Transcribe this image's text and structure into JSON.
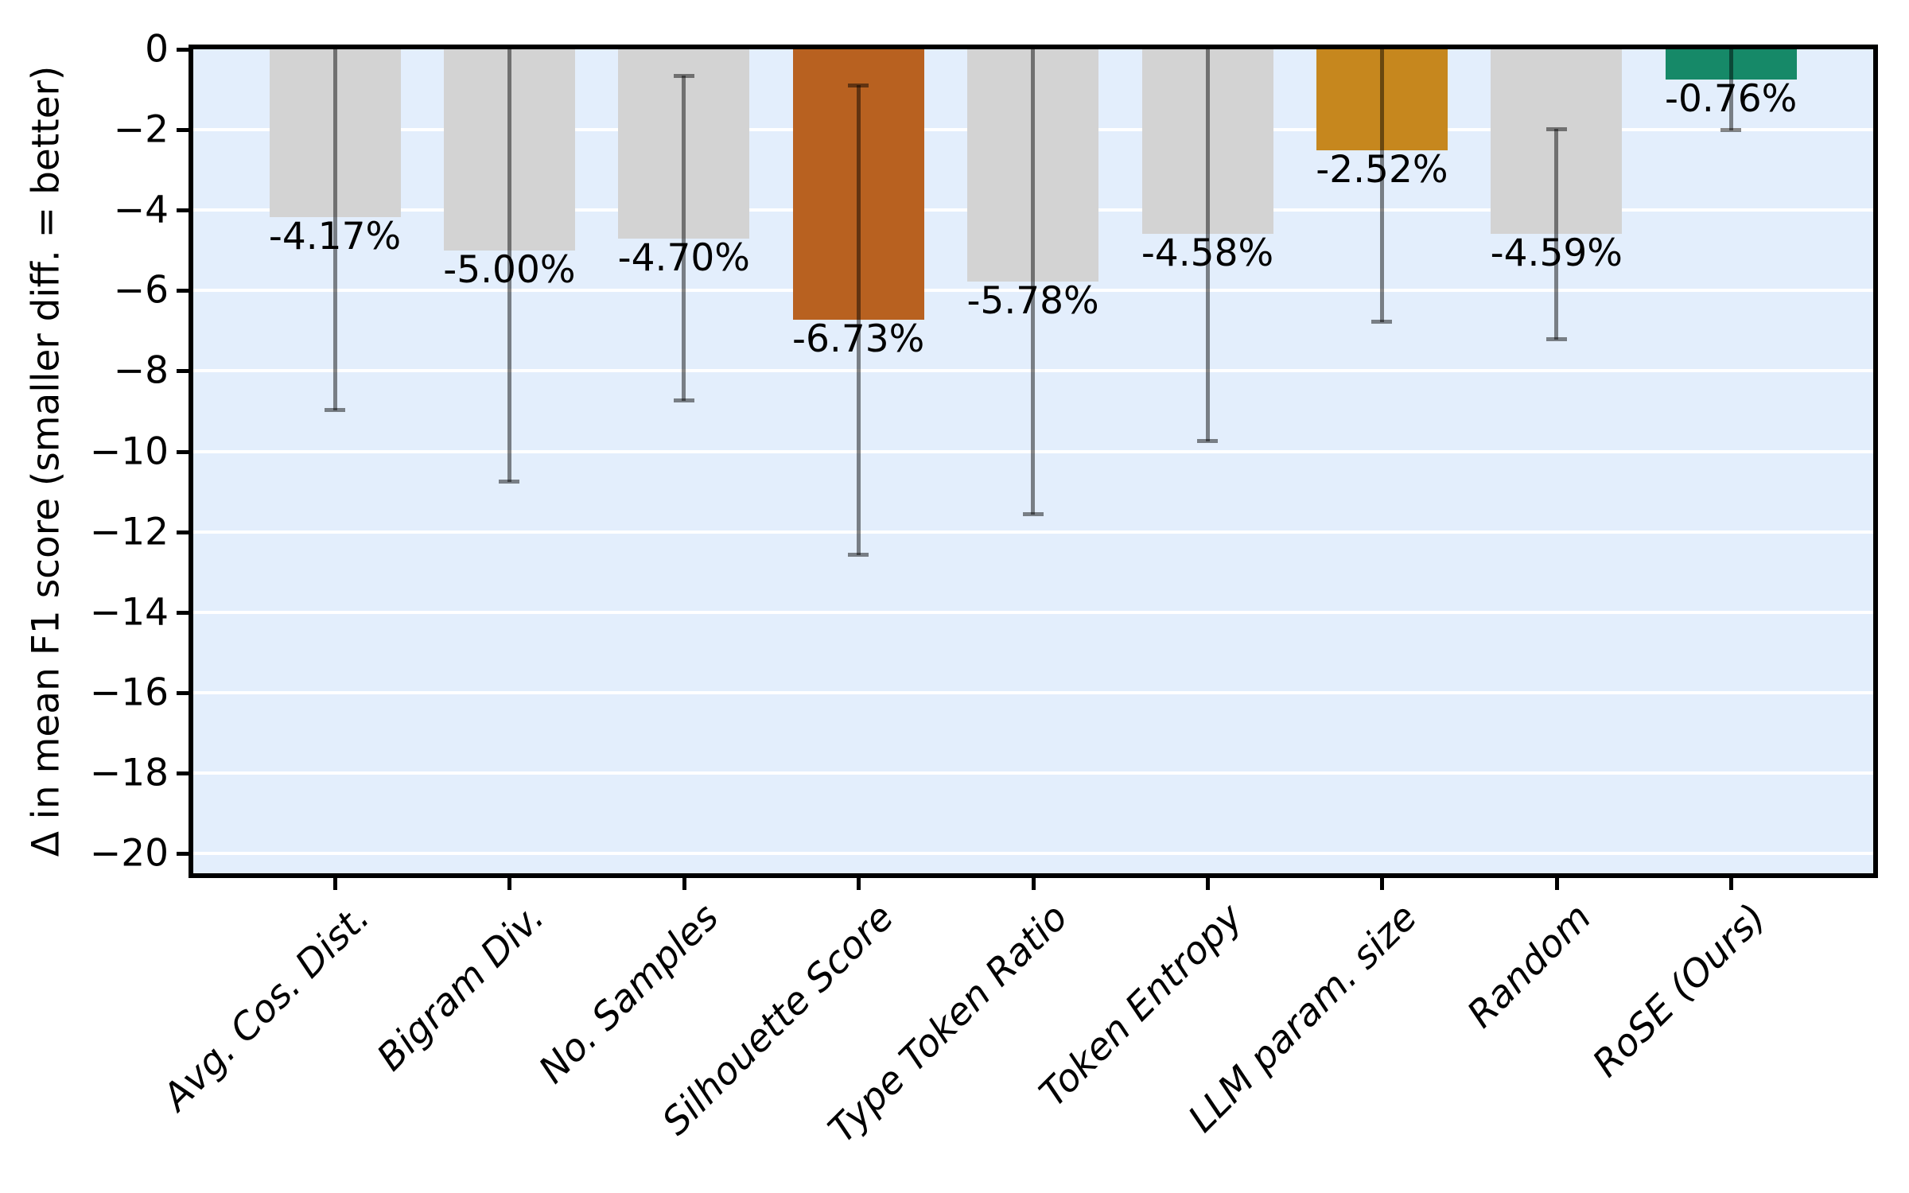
{
  "figure": {
    "kind": "matplotlib-style bar chart"
  },
  "colors": {
    "plot_background": "#e3eefc",
    "gridline": "#ffffff",
    "spine": "#000000",
    "error_bar": "rgba(0,0,0,0.47)",
    "bar_gray": "#d3d3d3",
    "bar_orange": "#b86120",
    "bar_gold": "#c6871e",
    "bar_green": "#168968",
    "text": "#000000"
  },
  "chart_data": {
    "type": "bar",
    "title": "",
    "xlabel": "",
    "ylabel": "Δ in mean F1 score (smaller diff. = better)",
    "ylim": [
      -20.5,
      0
    ],
    "grid": true,
    "legend": null,
    "categories": [
      "Avg. Cos. Dist.",
      "Bigram Div.",
      "No. Samples",
      "Silhouette Score",
      "Type Token Ratio",
      "Token Entropy",
      "LLM param. size",
      "Random",
      "RoSE (Ours)"
    ],
    "values": [
      -4.17,
      -5.0,
      -4.7,
      -6.73,
      -5.78,
      -4.58,
      -2.52,
      -4.59,
      -0.76
    ],
    "value_labels": [
      "-4.17%",
      "-5.00%",
      "-4.70%",
      "-6.73%",
      "-5.78%",
      "-4.58%",
      "-2.52%",
      "-4.59%",
      "-0.76%"
    ],
    "errors_plus_minus": [
      4.8,
      5.75,
      4.04,
      5.84,
      5.8,
      5.18,
      4.26,
      2.62,
      1.25
    ],
    "bar_colors": [
      "#d3d3d3",
      "#d3d3d3",
      "#d3d3d3",
      "#b86120",
      "#d3d3d3",
      "#d3d3d3",
      "#c6871e",
      "#d3d3d3",
      "#168968"
    ],
    "ytick_values": [
      0,
      -2,
      -4,
      -6,
      -8,
      -10,
      -12,
      -14,
      -16,
      -18,
      -20
    ],
    "ytick_labels": [
      "0",
      "−2",
      "−4",
      "−6",
      "−8",
      "−10",
      "−12",
      "−14",
      "−16",
      "−18",
      "−20"
    ]
  }
}
